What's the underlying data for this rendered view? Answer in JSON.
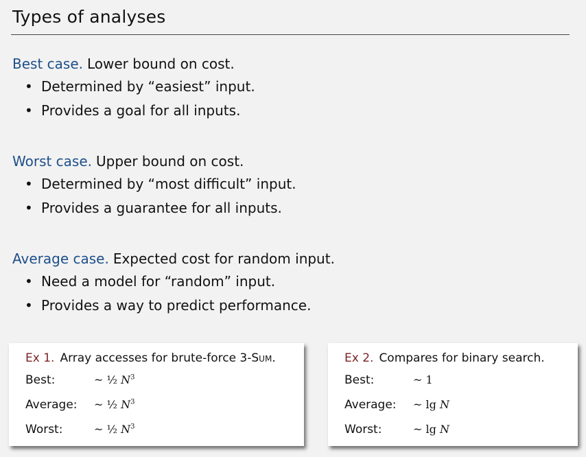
{
  "title": "Types of analyses",
  "sections": [
    {
      "head": "Best case.",
      "lead": "Lower bound on cost.",
      "bullets": [
        "Determined by “easiest” input.",
        "Provides a goal for all inputs."
      ]
    },
    {
      "head": "Worst case.",
      "lead": "Upper bound on cost.",
      "bullets": [
        "Determined by “most difficult” input.",
        "Provides a guarantee for all inputs."
      ]
    },
    {
      "head": "Average case.",
      "lead": "Expected cost for random input.",
      "bullets": [
        "Need a model for “random” input.",
        "Provides a way to predict performance."
      ]
    }
  ],
  "examples": [
    {
      "label": "Ex 1.",
      "desc": "Array accesses for brute-force 3-",
      "desc_sc": "Sum",
      "desc_end": ".",
      "rows": [
        {
          "name": "Best:",
          "prefix": "~ ½ ",
          "var": "N",
          "sup": "3"
        },
        {
          "name": "Average:",
          "prefix": "~ ½ ",
          "var": "N",
          "sup": "3"
        },
        {
          "name": "Worst:",
          "prefix": "~ ½ ",
          "var": "N",
          "sup": "3"
        }
      ]
    },
    {
      "label": "Ex 2.",
      "desc": "Compares for binary search.",
      "desc_sc": "",
      "desc_end": "",
      "rows": [
        {
          "name": "Best:",
          "prefix": "~ 1",
          "var": "",
          "sup": ""
        },
        {
          "name": "Average:",
          "prefix": "~ lg ",
          "var": "N",
          "sup": ""
        },
        {
          "name": "Worst:",
          "prefix": "~ lg ",
          "var": "N",
          "sup": ""
        }
      ]
    }
  ],
  "colors": {
    "heading": "#1d4f8a",
    "example_label": "#7a2323",
    "background": "#f2f2f2"
  }
}
